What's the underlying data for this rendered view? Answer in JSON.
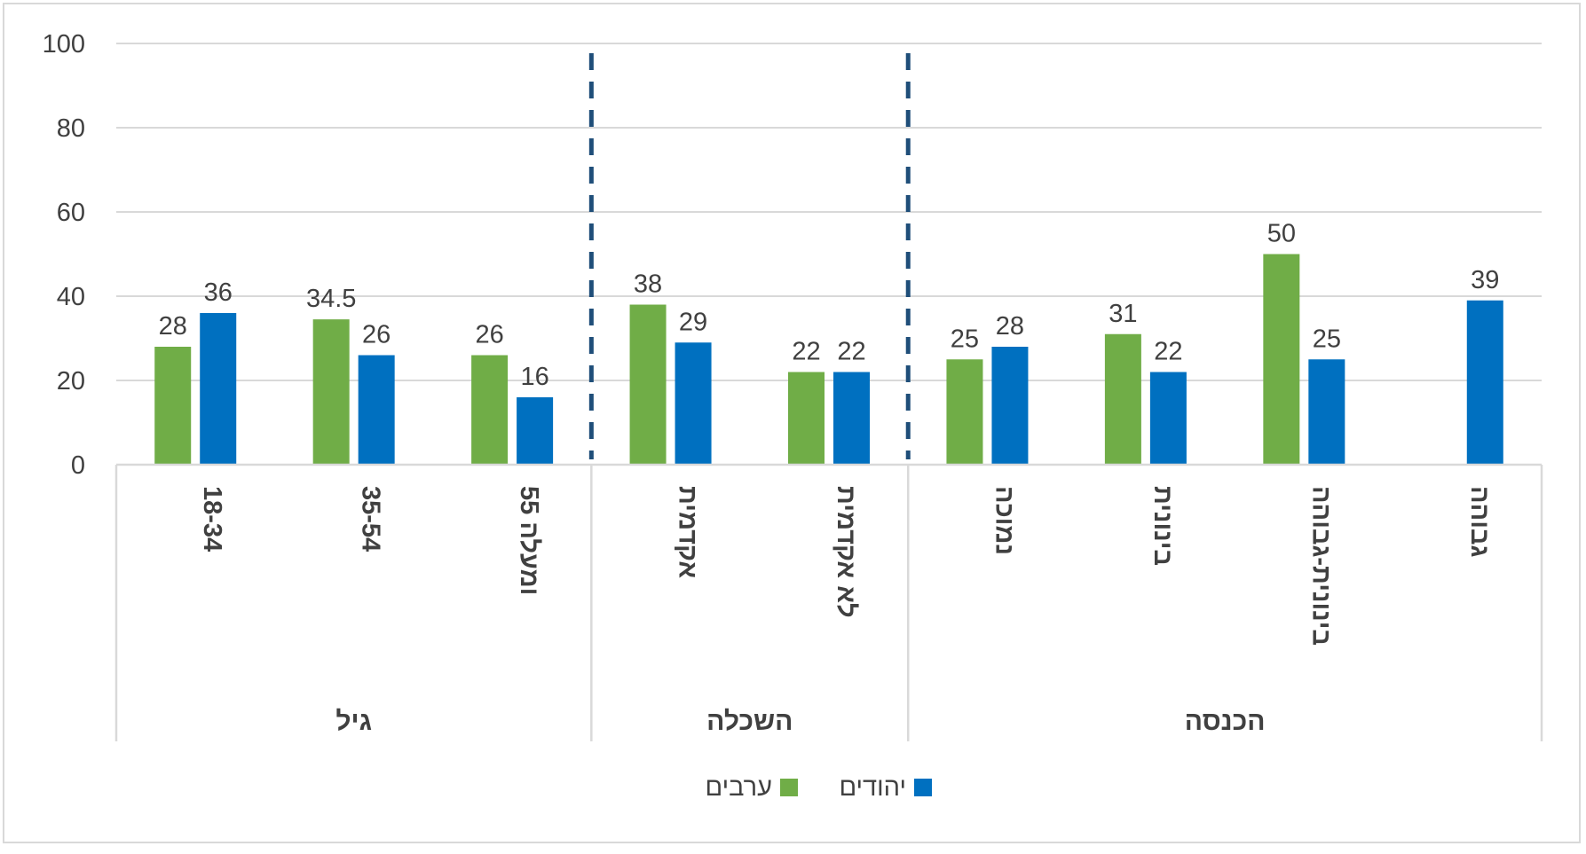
{
  "chart_data": {
    "type": "bar",
    "title": "",
    "xlabel": "",
    "ylabel": "",
    "ylim": [
      0,
      100
    ],
    "yticks": [
      "0",
      "20",
      "40",
      "60",
      "80",
      "100"
    ],
    "grid": true,
    "legend_position": "bottom",
    "categories": [
      "18-34",
      "35-54",
      "55 ומעלה",
      "אקדמית",
      "לא אקדמית",
      "נמוכה",
      "בינונית",
      "בינונית-גבוהה",
      "גבוהה"
    ],
    "groups": [
      {
        "label": "גיל",
        "count": 3
      },
      {
        "label": "השכלה",
        "count": 2
      },
      {
        "label": "הכנסה",
        "count": 4
      }
    ],
    "series": [
      {
        "name": "ערבים",
        "color": "#70AD47",
        "values": [
          28,
          34.5,
          26,
          38,
          22,
          25,
          31,
          50,
          null
        ],
        "labels": [
          "28",
          "34.5",
          "26",
          "38",
          "22",
          "25",
          "31",
          "50",
          ""
        ]
      },
      {
        "name": "יהודים",
        "color": "#0070C0",
        "values": [
          36,
          26,
          16,
          29,
          22,
          28,
          22,
          25,
          39
        ],
        "labels": [
          "36",
          "26",
          "16",
          "29",
          "22",
          "28",
          "22",
          "25",
          "39"
        ]
      }
    ],
    "separator_color": "#1F4E79"
  }
}
